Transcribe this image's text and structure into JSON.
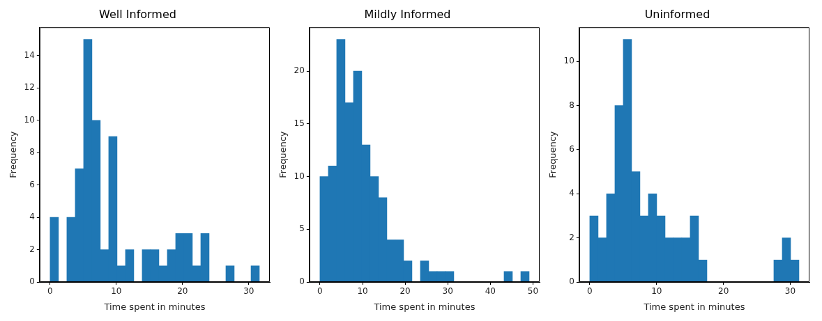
{
  "chart_data": [
    {
      "type": "histogram",
      "title": "Well Informed",
      "xlabel": "Time spent in minutes",
      "ylabel": "Frequency",
      "color": "#1f77b4",
      "bins": [
        0,
        1.26,
        2.53,
        3.79,
        5.06,
        6.32,
        7.58,
        8.85,
        10.11,
        11.38,
        12.64,
        13.9,
        15.17,
        16.43,
        17.7,
        18.96,
        20.22,
        21.49,
        22.75,
        24.02,
        25.28,
        26.54,
        27.81,
        29.07,
        30.34,
        31.6
      ],
      "values": [
        4,
        0,
        4,
        7,
        15,
        10,
        2,
        9,
        1,
        2,
        0,
        2,
        2,
        1,
        2,
        3,
        3,
        1,
        3,
        0,
        0,
        1,
        0,
        0,
        1
      ],
      "xlim": [
        -1.58,
        33.18
      ],
      "xticks": [
        0,
        10,
        20,
        30
      ],
      "ylim": [
        0,
        15.75
      ],
      "yticks": [
        0,
        2,
        4,
        6,
        8,
        10,
        12,
        14
      ]
    },
    {
      "type": "histogram",
      "title": "Mildly Informed",
      "xlabel": "Time spent in minutes",
      "ylabel": "Frequency",
      "color": "#1f77b4",
      "bins": [
        0,
        1.96,
        3.93,
        5.89,
        7.86,
        9.82,
        11.78,
        13.75,
        15.71,
        17.68,
        19.64,
        21.6,
        23.57,
        25.53,
        27.5,
        29.46,
        31.42,
        33.39,
        35.35,
        37.32,
        39.28,
        41.24,
        43.21,
        45.17,
        47.14,
        49.1
      ],
      "values": [
        10,
        11,
        23,
        17,
        20,
        13,
        10,
        8,
        4,
        4,
        2,
        0,
        2,
        1,
        1,
        1,
        0,
        0,
        0,
        0,
        0,
        0,
        1,
        0,
        1
      ],
      "xlim": [
        -2.46,
        51.56
      ],
      "xticks": [
        0,
        10,
        20,
        30,
        40,
        50
      ],
      "ylim": [
        0,
        24.15
      ],
      "yticks": [
        0,
        5,
        10,
        15,
        20
      ]
    },
    {
      "type": "histogram",
      "title": "Uninformed",
      "xlabel": "Time spent in minutes",
      "ylabel": "Frequency",
      "color": "#1f77b4",
      "bins": [
        0,
        1.25,
        2.5,
        3.76,
        5.01,
        6.26,
        7.51,
        8.76,
        10.02,
        11.27,
        12.52,
        13.77,
        15.02,
        16.28,
        17.53,
        18.78,
        20.03,
        21.28,
        22.54,
        23.79,
        25.04,
        26.29,
        27.54,
        28.8,
        30.05,
        31.3
      ],
      "values": [
        3,
        2,
        4,
        8,
        11,
        5,
        3,
        4,
        3,
        2,
        2,
        2,
        3,
        1,
        0,
        0,
        0,
        0,
        0,
        0,
        0,
        0,
        1,
        2,
        1
      ],
      "xlim": [
        -1.57,
        32.87
      ],
      "xticks": [
        0,
        10,
        20,
        30
      ],
      "ylim": [
        0,
        11.55
      ],
      "yticks": [
        0,
        2,
        4,
        6,
        8,
        10
      ]
    }
  ]
}
